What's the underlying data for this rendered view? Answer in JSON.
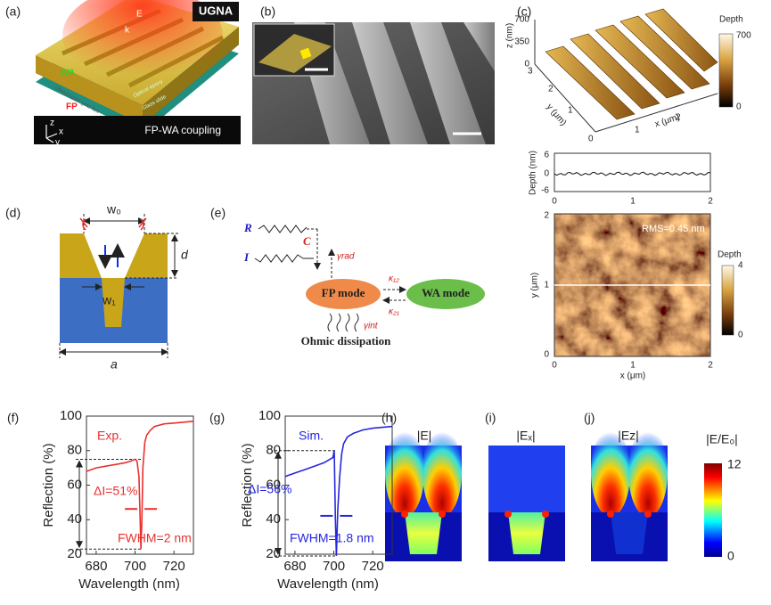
{
  "panels": {
    "a": {
      "label": "(a)",
      "badge": "UGNA",
      "caption": "FP-WA coupling",
      "e": "E",
      "k": "k",
      "fp": "FP",
      "wa": "WA",
      "gold": "Ultrasmooth gold film",
      "epoxy": "Optical epoxy",
      "glass": "Glass slide",
      "axes": [
        "z",
        "x",
        "y"
      ]
    },
    "b": {
      "label": "(b)"
    },
    "c": {
      "label": "(c)",
      "zlabel": "z (nm)",
      "zticks": [
        "700",
        "350",
        "0"
      ],
      "ylabel": "y (μm)",
      "xlabel": "x (μm)",
      "yticks": [
        "3",
        "2",
        "1",
        "0"
      ],
      "xticks": [
        "1",
        "2",
        "3"
      ],
      "cbar_title": "Depth",
      "cbar_ticks": [
        "700",
        "0"
      ],
      "profile": {
        "ylabel": "Depth (nm)",
        "yticks": [
          "6",
          "0",
          "-6"
        ],
        "xticks": [
          "0",
          "1",
          "2"
        ]
      },
      "map": {
        "rms": "RMS=0.45 nm",
        "ylabel": "y (μm)",
        "xlabel": "x (μm)",
        "yticks": [
          "2",
          "1",
          "0"
        ],
        "xticks": [
          "0",
          "1",
          "2"
        ],
        "cbar_title": "Depth",
        "cbar_ticks": [
          "4",
          "0"
        ]
      }
    },
    "d": {
      "label": "(d)",
      "w0": "w₀",
      "d": "d",
      "w1": "w₁",
      "a": "a"
    },
    "e": {
      "label": "(e)",
      "r": "R",
      "i": "I",
      "c": "C",
      "grad": "γrad",
      "fp": "FP mode",
      "wa": "WA mode",
      "k12": "κ₁₂",
      "k21": "κ₂₁",
      "gint": "γint",
      "ohmic": "Ohmic dissipation"
    },
    "h": {
      "label": "(h)",
      "title": "|E|"
    },
    "i": {
      "label": "(i)",
      "title": "|Eₓ|"
    },
    "j": {
      "label": "(j)",
      "title": "|Ez|"
    },
    "cbar": {
      "title": "|E/E₀|",
      "ticks": [
        "12",
        "0"
      ]
    }
  },
  "chart_data": [
    {
      "type": "line",
      "label": "(f)",
      "xlabel": "Wavelength (nm)",
      "ylabel": "Reflection (%)",
      "color": "#e8312f",
      "x": [
        675,
        680,
        685,
        690,
        695,
        698,
        700,
        701,
        702,
        702.5,
        703,
        703.5,
        704,
        705,
        706,
        708,
        710,
        715,
        720,
        725,
        730
      ],
      "values": [
        68,
        70,
        71,
        72,
        73,
        74,
        75,
        74,
        65,
        45,
        23,
        40,
        70,
        85,
        89,
        92,
        94,
        95.5,
        96,
        96.5,
        97
      ],
      "xlim": [
        675,
        730
      ],
      "xticks": [
        680,
        700,
        720
      ],
      "ylim": [
        20,
        100
      ],
      "yticks": [
        20,
        40,
        60,
        80,
        100
      ],
      "annotations": [
        "Exp.",
        "ΔI=51%",
        "FWHM=2 nm"
      ]
    },
    {
      "type": "line",
      "label": "(g)",
      "xlabel": "Wavelength (nm)",
      "ylabel": "Reflection (%)",
      "color": "#2626e0",
      "x": [
        675,
        680,
        685,
        690,
        695,
        698,
        699.5,
        700.2,
        700.8,
        701.3,
        702,
        703,
        704,
        705,
        707,
        710,
        715,
        720,
        725,
        730
      ],
      "values": [
        65,
        67,
        69,
        71,
        73,
        75,
        76,
        80,
        40,
        19,
        45,
        65,
        78,
        84,
        88,
        90,
        92,
        93,
        93.5,
        94
      ],
      "xlim": [
        675,
        730
      ],
      "xticks": [
        680,
        700,
        720
      ],
      "ylim": [
        20,
        100
      ],
      "yticks": [
        20,
        40,
        60,
        80,
        100
      ],
      "annotations": [
        "Sim.",
        "ΔI=56%",
        "FWHM=1.8 nm"
      ]
    }
  ]
}
